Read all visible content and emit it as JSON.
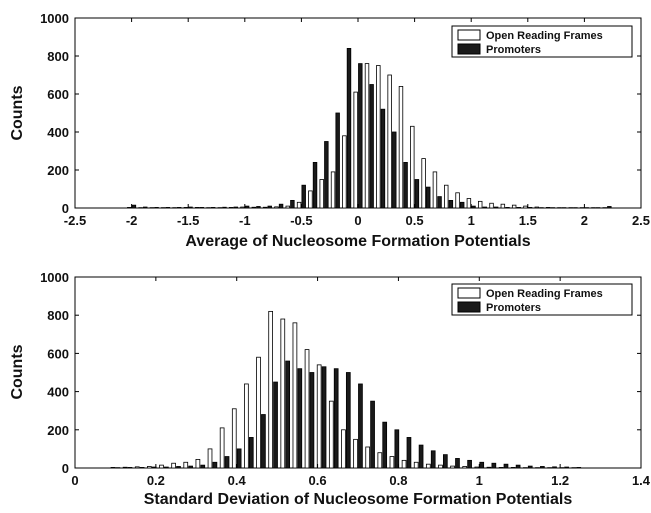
{
  "colors": {
    "orf": "#ffffff",
    "promoter": "#1a1a1a",
    "stroke": "#000000"
  },
  "chart_data": [
    {
      "type": "bar",
      "xlabel": "Average of Nucleosome Formation Potentials",
      "ylabel": "Counts",
      "xlim": [
        -2.5,
        2.5
      ],
      "ylim": [
        0,
        1000
      ],
      "xticks": [
        -2.5,
        -2,
        -1.5,
        -1,
        -0.5,
        0,
        0.5,
        1,
        1.5,
        2,
        2.5
      ],
      "xtick_labels": [
        "-2.5",
        "-2",
        "-1.5",
        "-1",
        "-0.5",
        "0",
        "0.5",
        "1",
        "1.5",
        "2",
        "2.5"
      ],
      "yticks": [
        0,
        200,
        400,
        600,
        800,
        1000
      ],
      "ytick_labels": [
        "0",
        "200",
        "400",
        "600",
        "800",
        "1000"
      ],
      "grid": false,
      "legend_position": "top-right",
      "x": [
        -2.0,
        -1.9,
        -1.8,
        -1.7,
        -1.6,
        -1.5,
        -1.4,
        -1.3,
        -1.2,
        -1.1,
        -1.0,
        -0.9,
        -0.8,
        -0.7,
        -0.6,
        -0.5,
        -0.4,
        -0.3,
        -0.2,
        -0.1,
        0.0,
        0.1,
        0.2,
        0.3,
        0.4,
        0.5,
        0.6,
        0.7,
        0.8,
        0.9,
        1.0,
        1.1,
        1.2,
        1.3,
        1.4,
        1.5,
        1.6,
        1.7,
        1.8,
        1.9,
        2.0,
        2.1,
        2.2
      ],
      "series": [
        {
          "name": "Open Reading Frames",
          "values": [
            3,
            2,
            2,
            2,
            2,
            3,
            3,
            2,
            2,
            3,
            5,
            4,
            4,
            6,
            10,
            30,
            90,
            150,
            190,
            380,
            610,
            760,
            750,
            700,
            640,
            430,
            260,
            190,
            120,
            80,
            50,
            35,
            25,
            20,
            15,
            10,
            5,
            3,
            2,
            2,
            2,
            2,
            2
          ]
        },
        {
          "name": "Promoters",
          "values": [
            15,
            5,
            3,
            3,
            3,
            5,
            3,
            3,
            4,
            5,
            10,
            8,
            10,
            20,
            40,
            120,
            240,
            350,
            500,
            840,
            760,
            650,
            520,
            400,
            240,
            150,
            110,
            60,
            40,
            30,
            10,
            5,
            5,
            3,
            3,
            3,
            2,
            2,
            2,
            2,
            2,
            2,
            8
          ]
        }
      ]
    },
    {
      "type": "bar",
      "xlabel": "Standard Deviation of Nucleosome Formation Potentials",
      "ylabel": "Counts",
      "xlim": [
        0,
        1.4
      ],
      "ylim": [
        0,
        1000
      ],
      "xticks": [
        0,
        0.2,
        0.4,
        0.6,
        0.8,
        1,
        1.2,
        1.4
      ],
      "xtick_labels": [
        "0",
        "0.2",
        "0.4",
        "0.6",
        "0.8",
        "1",
        "1.2",
        "1.4"
      ],
      "yticks": [
        0,
        200,
        400,
        600,
        800,
        1000
      ],
      "ytick_labels": [
        "0",
        "200",
        "400",
        "600",
        "800",
        "1000"
      ],
      "grid": false,
      "legend_position": "top-right",
      "x": [
        0.1,
        0.13,
        0.16,
        0.19,
        0.22,
        0.25,
        0.28,
        0.31,
        0.34,
        0.37,
        0.4,
        0.43,
        0.46,
        0.49,
        0.52,
        0.55,
        0.58,
        0.61,
        0.64,
        0.67,
        0.7,
        0.73,
        0.76,
        0.79,
        0.82,
        0.85,
        0.88,
        0.91,
        0.94,
        0.97,
        1.0,
        1.03,
        1.06,
        1.09,
        1.12,
        1.15,
        1.18,
        1.21,
        1.24
      ],
      "series": [
        {
          "name": "Open Reading Frames",
          "values": [
            3,
            4,
            6,
            8,
            15,
            25,
            30,
            45,
            100,
            210,
            310,
            440,
            580,
            820,
            780,
            760,
            620,
            540,
            350,
            200,
            150,
            110,
            80,
            60,
            40,
            30,
            20,
            15,
            10,
            8,
            5,
            4,
            3,
            3,
            2,
            2,
            2,
            2,
            2
          ]
        },
        {
          "name": "Promoters",
          "values": [
            2,
            3,
            3,
            5,
            5,
            8,
            10,
            15,
            30,
            60,
            100,
            160,
            280,
            450,
            560,
            520,
            500,
            530,
            520,
            500,
            440,
            350,
            240,
            200,
            160,
            120,
            90,
            70,
            50,
            40,
            30,
            25,
            20,
            15,
            10,
            8,
            6,
            5,
            3
          ]
        }
      ]
    }
  ]
}
